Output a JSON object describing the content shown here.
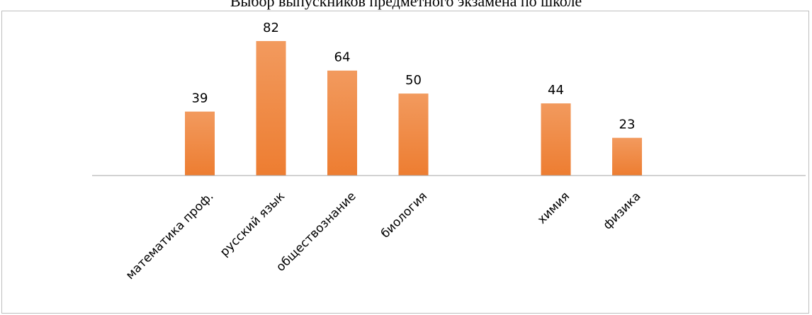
{
  "chart_data": {
    "type": "bar",
    "title": "Выбор выпускников предметного экзамена по школе",
    "categories": [
      "математика проф.",
      "русский язык",
      "обществознание",
      "биология",
      "",
      "химия",
      "физика"
    ],
    "values": [
      39,
      82,
      64,
      50,
      null,
      44,
      23
    ],
    "xlabel": "",
    "ylabel": "",
    "ylim": [
      0,
      82
    ],
    "grid": false,
    "legend": "none",
    "bar_color": "#ED7D31",
    "bar_color_light": "#F29A5E",
    "axis_color": "#A6A6A6"
  }
}
